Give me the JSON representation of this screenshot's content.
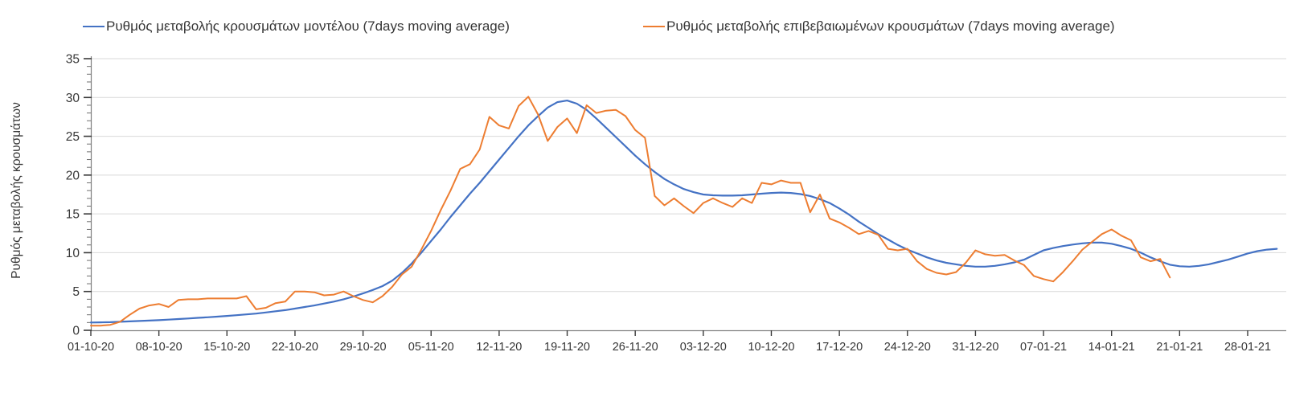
{
  "page": {
    "background": "#FFFFFF"
  },
  "chart_data": {
    "type": "line",
    "title": "",
    "xlabel": "",
    "ylabel": "Ρυθμός μεταβολής κρουσμάτων",
    "ylim": [
      0,
      35
    ],
    "yticks": [
      0,
      5,
      10,
      15,
      20,
      25,
      30,
      35
    ],
    "y_minor_tick_step": 1,
    "grid": "horizontal-major",
    "legend_position": "top",
    "x_start_date": "01-10-20",
    "x_step": "1 day",
    "x_ticks": {
      "step_days": 7,
      "labels": [
        "01-10-20",
        "08-10-20",
        "15-10-20",
        "22-10-20",
        "29-10-20",
        "05-11-20",
        "12-11-20",
        "19-11-20",
        "26-11-20",
        "03-12-20",
        "10-12-20",
        "17-12-20",
        "24-12-20",
        "31-12-20",
        "07-01-21",
        "14-01-21",
        "21-01-21",
        "28-01-21"
      ]
    },
    "colors": {
      "axis": "#808080",
      "tick": "#3a3a3a",
      "gridline": "#D9D9D9",
      "text": "#363636"
    },
    "series": [
      {
        "name": "Ρυθμός μεταβολής κρουσμάτων μοντέλου (7days moving average)",
        "color": "#4472C4",
        "start_day": 0,
        "values": [
          1.0,
          1.02,
          1.05,
          1.1,
          1.15,
          1.2,
          1.25,
          1.3,
          1.38,
          1.45,
          1.52,
          1.6,
          1.68,
          1.76,
          1.85,
          1.95,
          2.05,
          2.15,
          2.3,
          2.45,
          2.6,
          2.8,
          3.0,
          3.2,
          3.45,
          3.7,
          4.0,
          4.35,
          4.75,
          5.2,
          5.7,
          6.4,
          7.4,
          8.6,
          10.0,
          11.5,
          13.0,
          14.6,
          16.1,
          17.6,
          19.0,
          20.5,
          22.0,
          23.5,
          25.0,
          26.4,
          27.6,
          28.7,
          29.4,
          29.6,
          29.2,
          28.4,
          27.3,
          26.1,
          24.9,
          23.7,
          22.5,
          21.4,
          20.4,
          19.5,
          18.8,
          18.2,
          17.8,
          17.5,
          17.4,
          17.35,
          17.35,
          17.4,
          17.5,
          17.6,
          17.7,
          17.75,
          17.7,
          17.55,
          17.3,
          16.9,
          16.4,
          15.7,
          14.9,
          14.0,
          13.2,
          12.4,
          11.7,
          11.0,
          10.4,
          9.9,
          9.4,
          9.0,
          8.7,
          8.5,
          8.3,
          8.2,
          8.2,
          8.3,
          8.5,
          8.75,
          9.1,
          9.7,
          10.3,
          10.6,
          10.85,
          11.05,
          11.2,
          11.3,
          11.3,
          11.15,
          10.85,
          10.5,
          10.0,
          9.4,
          8.9,
          8.45,
          8.25,
          8.2,
          8.3,
          8.5,
          8.8,
          9.1,
          9.5,
          9.9,
          10.2,
          10.4,
          10.5
        ]
      },
      {
        "name": "Ρυθμός μεταβολής επιβεβαιωμένων κρουσμάτων (7days moving average)",
        "color": "#ED7D31",
        "start_day": 0,
        "values": [
          0.6,
          0.6,
          0.7,
          1.1,
          2.0,
          2.8,
          3.2,
          3.4,
          3.0,
          3.9,
          4.0,
          4.0,
          4.1,
          4.1,
          4.1,
          4.1,
          4.4,
          2.7,
          2.9,
          3.5,
          3.7,
          5.0,
          5.0,
          4.9,
          4.5,
          4.6,
          5.0,
          4.4,
          3.9,
          3.6,
          4.4,
          5.6,
          7.2,
          8.2,
          10.4,
          12.8,
          15.5,
          18.0,
          20.8,
          21.4,
          23.3,
          27.5,
          26.4,
          26.0,
          28.9,
          30.1,
          27.8,
          24.4,
          26.2,
          27.3,
          25.4,
          29.0,
          28.0,
          28.3,
          28.4,
          27.6,
          25.8,
          24.8,
          17.3,
          16.1,
          17.0,
          16.0,
          15.1,
          16.4,
          17.0,
          16.4,
          15.9,
          17.0,
          16.4,
          19.0,
          18.8,
          19.3,
          19.0,
          19.0,
          15.2,
          17.5,
          14.4,
          13.9,
          13.2,
          12.4,
          12.8,
          12.3,
          10.5,
          10.3,
          10.5,
          8.9,
          7.9,
          7.4,
          7.2,
          7.5,
          8.7,
          10.3,
          9.8,
          9.6,
          9.7,
          9.0,
          8.4,
          7.0,
          6.6,
          6.3,
          7.5,
          8.9,
          10.4,
          11.4,
          12.4,
          13.0,
          12.2,
          11.6,
          9.4,
          8.9,
          9.2,
          6.8
        ]
      }
    ]
  }
}
